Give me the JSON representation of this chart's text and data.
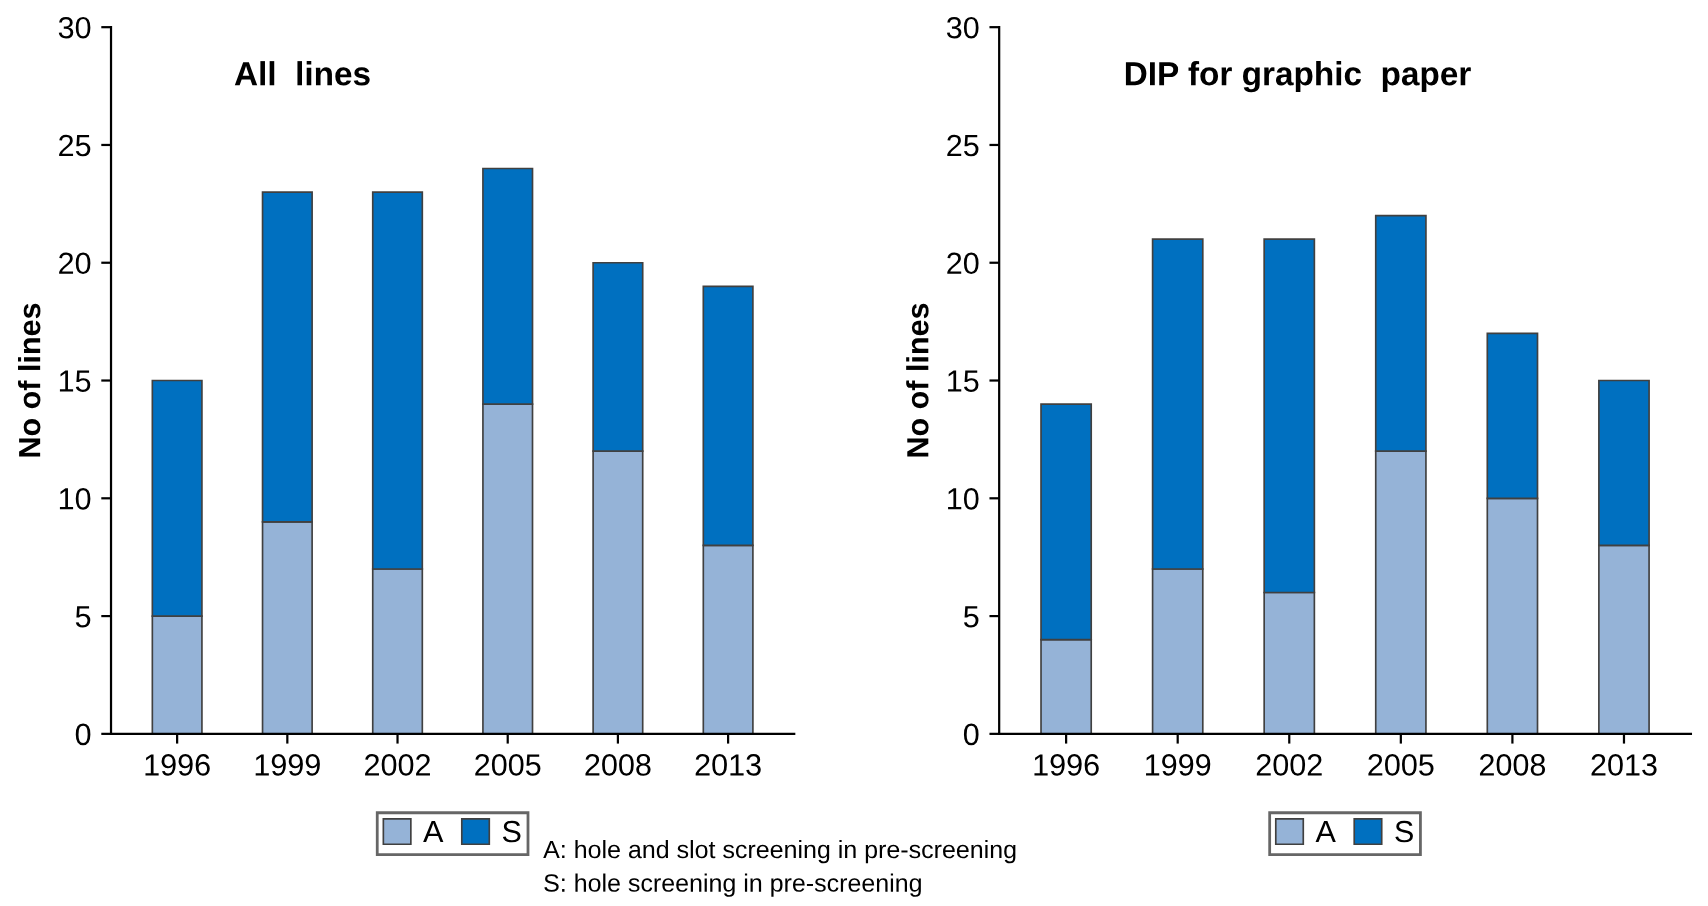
{
  "chart_data": [
    {
      "type": "bar",
      "title": "All  lines",
      "ylabel": "No of lines",
      "categories": [
        "1996",
        "1999",
        "2002",
        "2005",
        "2008",
        "2013"
      ],
      "stacked": true,
      "ylim": [
        0,
        30
      ],
      "yticks": [
        0,
        5,
        10,
        15,
        20,
        25,
        30
      ],
      "legend": "bottom",
      "grid": false,
      "series": [
        {
          "name": "A",
          "color": "#95b3d7",
          "values": [
            5,
            9,
            7,
            14,
            12,
            8
          ]
        },
        {
          "name": "S",
          "color": "#0070c0",
          "values": [
            10,
            14,
            16,
            10,
            8,
            11
          ]
        }
      ],
      "annotations": [
        "A: hole and slot screening in pre-screening",
        "S: hole screening in pre-screening"
      ]
    },
    {
      "type": "bar",
      "title": "DIP for graphic  paper",
      "ylabel": "No of lines",
      "categories": [
        "1996",
        "1999",
        "2002",
        "2005",
        "2008",
        "2013"
      ],
      "stacked": true,
      "ylim": [
        0,
        30
      ],
      "yticks": [
        0,
        5,
        10,
        15,
        20,
        25,
        30
      ],
      "legend": "bottom",
      "grid": false,
      "series": [
        {
          "name": "A",
          "color": "#95b3d7",
          "values": [
            4,
            7,
            6,
            12,
            10,
            8
          ]
        },
        {
          "name": "S",
          "color": "#0070c0",
          "values": [
            10,
            14,
            15,
            10,
            7,
            7
          ]
        }
      ]
    }
  ]
}
